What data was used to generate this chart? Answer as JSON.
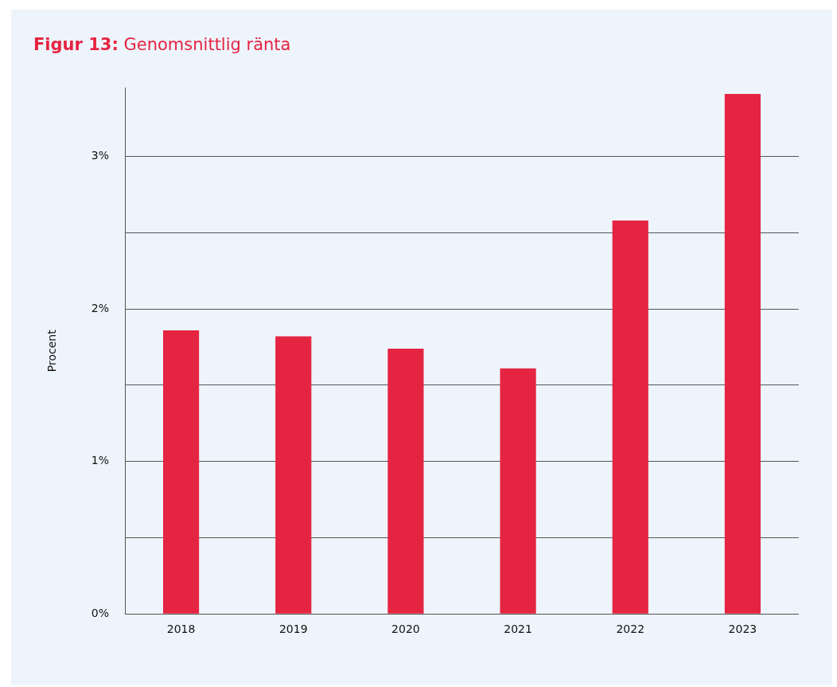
{
  "chart_data": {
    "type": "bar",
    "title": "Figur 13: Genomsnittlig ränta",
    "ylabel": "Procent",
    "categories": [
      "2018",
      "2019",
      "2020",
      "2021",
      "2022",
      "2023"
    ],
    "values": [
      1.86,
      1.82,
      1.74,
      1.61,
      2.58,
      3.41
    ],
    "color": "#e52442",
    "ylim": [
      0,
      3.45
    ],
    "yticks": [
      {
        "value": 0,
        "label": "0%"
      },
      {
        "value": 0.5,
        "label": null
      },
      {
        "value": 1,
        "label": "1%"
      },
      {
        "value": 1.5,
        "label": null
      },
      {
        "value": 2,
        "label": "2%"
      },
      {
        "value": 2.5,
        "label": null
      },
      {
        "value": 3,
        "label": "3%"
      }
    ],
    "grid": "y",
    "legend": false
  }
}
